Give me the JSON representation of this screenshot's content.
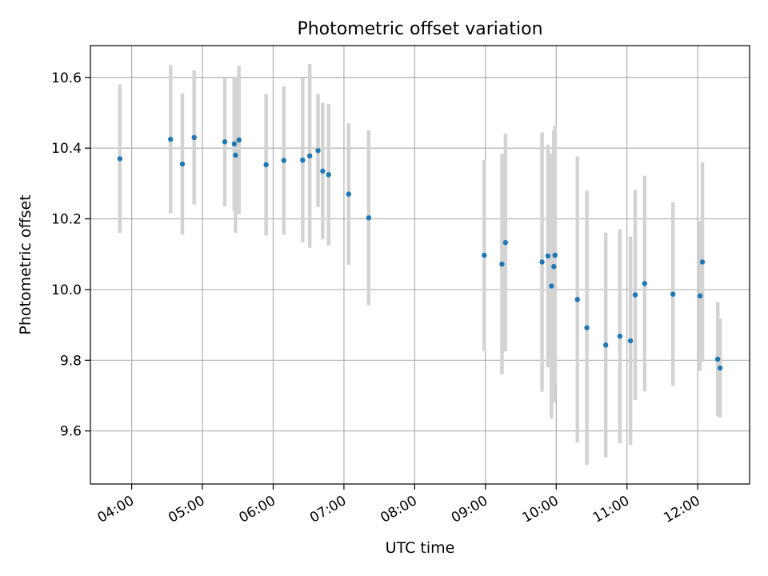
{
  "chart_data": {
    "type": "scatter",
    "title": "Photometric offset variation",
    "xlabel": "UTC time",
    "ylabel": "Photometric offset",
    "xlim": [
      "03:25",
      "12:44"
    ],
    "ylim": [
      9.45,
      10.69
    ],
    "x_ticks": [
      "04:00",
      "05:00",
      "06:00",
      "07:00",
      "08:00",
      "09:00",
      "10:00",
      "11:00",
      "12:00"
    ],
    "y_ticks": [
      9.6,
      9.8,
      10.0,
      10.2,
      10.4,
      10.6
    ],
    "grid": true,
    "colors": {
      "point": "#1f77b4",
      "errorbar": "#d3d3d3",
      "grid": "#b0b0b0"
    },
    "points": [
      {
        "time": "03:50",
        "y": 10.37,
        "err": 0.21
      },
      {
        "time": "04:33",
        "y": 10.425,
        "err": 0.21
      },
      {
        "time": "04:43",
        "y": 10.355,
        "err": 0.2
      },
      {
        "time": "04:53",
        "y": 10.43,
        "err": 0.19
      },
      {
        "time": "05:19",
        "y": 10.418,
        "err": 0.182
      },
      {
        "time": "05:27",
        "y": 10.412,
        "err": 0.19
      },
      {
        "time": "05:28",
        "y": 10.38,
        "err": 0.22
      },
      {
        "time": "05:31",
        "y": 10.423,
        "err": 0.21
      },
      {
        "time": "05:54",
        "y": 10.353,
        "err": 0.2
      },
      {
        "time": "06:09",
        "y": 10.365,
        "err": 0.21
      },
      {
        "time": "06:25",
        "y": 10.366,
        "err": 0.233
      },
      {
        "time": "06:31",
        "y": 10.378,
        "err": 0.26
      },
      {
        "time": "06:38",
        "y": 10.393,
        "err": 0.16
      },
      {
        "time": "06:42",
        "y": 10.335,
        "err": 0.193
      },
      {
        "time": "06:47",
        "y": 10.325,
        "err": 0.2
      },
      {
        "time": "07:04",
        "y": 10.27,
        "err": 0.2
      },
      {
        "time": "07:21",
        "y": 10.203,
        "err": 0.248
      },
      {
        "time": "08:59",
        "y": 10.097,
        "err": 0.27
      },
      {
        "time": "09:14",
        "y": 10.072,
        "err": 0.312
      },
      {
        "time": "09:17",
        "y": 10.133,
        "err": 0.308
      },
      {
        "time": "09:48",
        "y": 10.078,
        "err": 0.367
      },
      {
        "time": "09:53",
        "y": 10.095,
        "err": 0.315
      },
      {
        "time": "09:56",
        "y": 10.01,
        "err": 0.375
      },
      {
        "time": "09:58",
        "y": 10.065,
        "err": 0.385
      },
      {
        "time": "09:59",
        "y": 10.097,
        "err": 0.367
      },
      {
        "time": "10:18",
        "y": 9.972,
        "err": 0.405
      },
      {
        "time": "10:26",
        "y": 9.892,
        "err": 0.388
      },
      {
        "time": "10:42",
        "y": 9.843,
        "err": 0.318
      },
      {
        "time": "10:54",
        "y": 9.868,
        "err": 0.303
      },
      {
        "time": "11:03",
        "y": 9.855,
        "err": 0.295
      },
      {
        "time": "11:07",
        "y": 9.985,
        "err": 0.297
      },
      {
        "time": "11:15",
        "y": 10.017,
        "err": 0.305
      },
      {
        "time": "11:39",
        "y": 9.987,
        "err": 0.26
      },
      {
        "time": "12:02",
        "y": 9.982,
        "err": 0.212
      },
      {
        "time": "12:04",
        "y": 10.078,
        "err": 0.282
      },
      {
        "time": "12:17",
        "y": 9.803,
        "err": 0.162
      },
      {
        "time": "12:19",
        "y": 9.778,
        "err": 0.14
      }
    ]
  }
}
